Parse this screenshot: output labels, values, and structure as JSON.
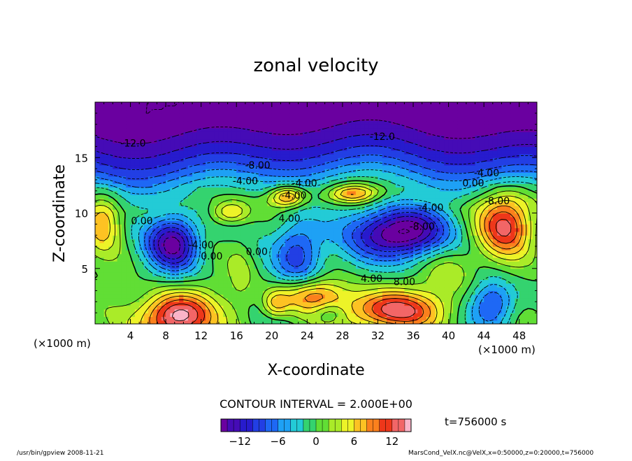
{
  "chart_data": {
    "type": "heatmap",
    "title": "zonal velocity",
    "xlabel": "X-coordinate",
    "ylabel": "Z-coordinate",
    "x_unit_left": "(×1000 m)",
    "x_unit_right": "(×1000 m)",
    "xlim": [
      0,
      50
    ],
    "ylim": [
      0,
      20
    ],
    "xticks": [
      4,
      8,
      12,
      16,
      20,
      24,
      28,
      32,
      36,
      40,
      44,
      48
    ],
    "yticks": [
      5,
      10,
      15
    ],
    "contour_interval_text": "CONTOUR INTERVAL = 2.000E+00",
    "time_text": "t=756000 s",
    "colorbar": {
      "min": -15,
      "max": 15,
      "ticks": [
        -12,
        -6,
        0,
        6,
        12
      ]
    },
    "contour_labels": [
      {
        "text": "-12.0",
        "x": 4.3,
        "y": 16.0
      },
      {
        "text": "-12.0",
        "x": 32.5,
        "y": 16.6
      },
      {
        "text": "-8.00",
        "x": 18.4,
        "y": 14.0
      },
      {
        "text": "-4.00",
        "x": 17.0,
        "y": 12.6
      },
      {
        "text": "-4.00",
        "x": 23.7,
        "y": 12.4
      },
      {
        "text": "-4.00",
        "x": 22.5,
        "y": 11.3
      },
      {
        "text": "-4.00",
        "x": 44.3,
        "y": 13.3
      },
      {
        "text": "0.00",
        "x": 42.8,
        "y": 12.4
      },
      {
        "text": "-8.00",
        "x": 45.5,
        "y": 10.8
      },
      {
        "text": "-4.00",
        "x": 38.0,
        "y": 10.2
      },
      {
        "text": "-8.00",
        "x": 37.0,
        "y": 8.5
      },
      {
        "text": "0.00",
        "x": 5.3,
        "y": 9.0
      },
      {
        "text": "4.00",
        "x": 22.0,
        "y": 9.2
      },
      {
        "text": "-4.00",
        "x": 12.0,
        "y": 6.8
      },
      {
        "text": "0.00",
        "x": 13.2,
        "y": 5.8
      },
      {
        "text": "0.00",
        "x": 18.3,
        "y": 6.2
      },
      {
        "text": "4.00",
        "x": 31.3,
        "y": 3.8
      },
      {
        "text": "8.00",
        "x": 35.0,
        "y": 3.5
      }
    ],
    "field": [
      {
        "x": 9,
        "y": 7.3,
        "sx": 3.0,
        "sy": 2.6,
        "a": -15
      },
      {
        "x": 34.5,
        "y": 8.2,
        "sx": 5.2,
        "sy": 2.4,
        "a": -18
      },
      {
        "x": 23,
        "y": 6.5,
        "sx": 2.8,
        "sy": 3.2,
        "a": -10
      },
      {
        "x": 45,
        "y": 1.8,
        "sx": 2.6,
        "sy": 2.2,
        "a": -9
      },
      {
        "x": 26.5,
        "y": 1.0,
        "sx": 1.8,
        "sy": 1.0,
        "a": -4
      },
      {
        "x": 15.3,
        "y": 10.1,
        "sx": 2.0,
        "sy": 1.0,
        "a": 7
      },
      {
        "x": 21.8,
        "y": 11.5,
        "sx": 2.0,
        "sy": 0.9,
        "a": 10
      },
      {
        "x": 29.3,
        "y": 11.8,
        "sx": 2.8,
        "sy": 0.9,
        "a": 9
      },
      {
        "x": 46.5,
        "y": 9.0,
        "sx": 3.2,
        "sy": 2.8,
        "a": 12
      },
      {
        "x": 1.0,
        "y": 9.3,
        "sx": 2.0,
        "sy": 2.5,
        "a": 7
      },
      {
        "x": 9.2,
        "y": 0.6,
        "sx": 4.0,
        "sy": 2.3,
        "a": 16
      },
      {
        "x": 33.5,
        "y": 1.2,
        "sx": 5.5,
        "sy": 1.8,
        "a": 13
      },
      {
        "x": 24.6,
        "y": 2.6,
        "sx": 3.8,
        "sy": 1.5,
        "a": 9
      },
      {
        "x": 20.4,
        "y": 1.8,
        "sx": 1.5,
        "sy": 1.2,
        "a": 6
      },
      {
        "x": 16.5,
        "y": 4.5,
        "sx": 1.6,
        "sy": 3.5,
        "a": 3
      },
      {
        "x": 40,
        "y": 5.0,
        "sx": 3.0,
        "sy": 3.0,
        "a": 4
      }
    ],
    "upper_profile": [
      {
        "y": 20.0,
        "v": -16
      },
      {
        "y": 18.0,
        "v": -15
      },
      {
        "y": 16.0,
        "v": -12
      },
      {
        "y": 14.5,
        "v": -9
      },
      {
        "y": 13.5,
        "v": -6
      },
      {
        "y": 12.5,
        "v": -3
      },
      {
        "y": 11.0,
        "v": 0
      }
    ]
  },
  "footer": {
    "left": "/usr/bin/gpview  2008-11-21",
    "right": "MarsCond_VelX.nc@VelX,x=0:50000,z=0:20000,t=756000"
  }
}
